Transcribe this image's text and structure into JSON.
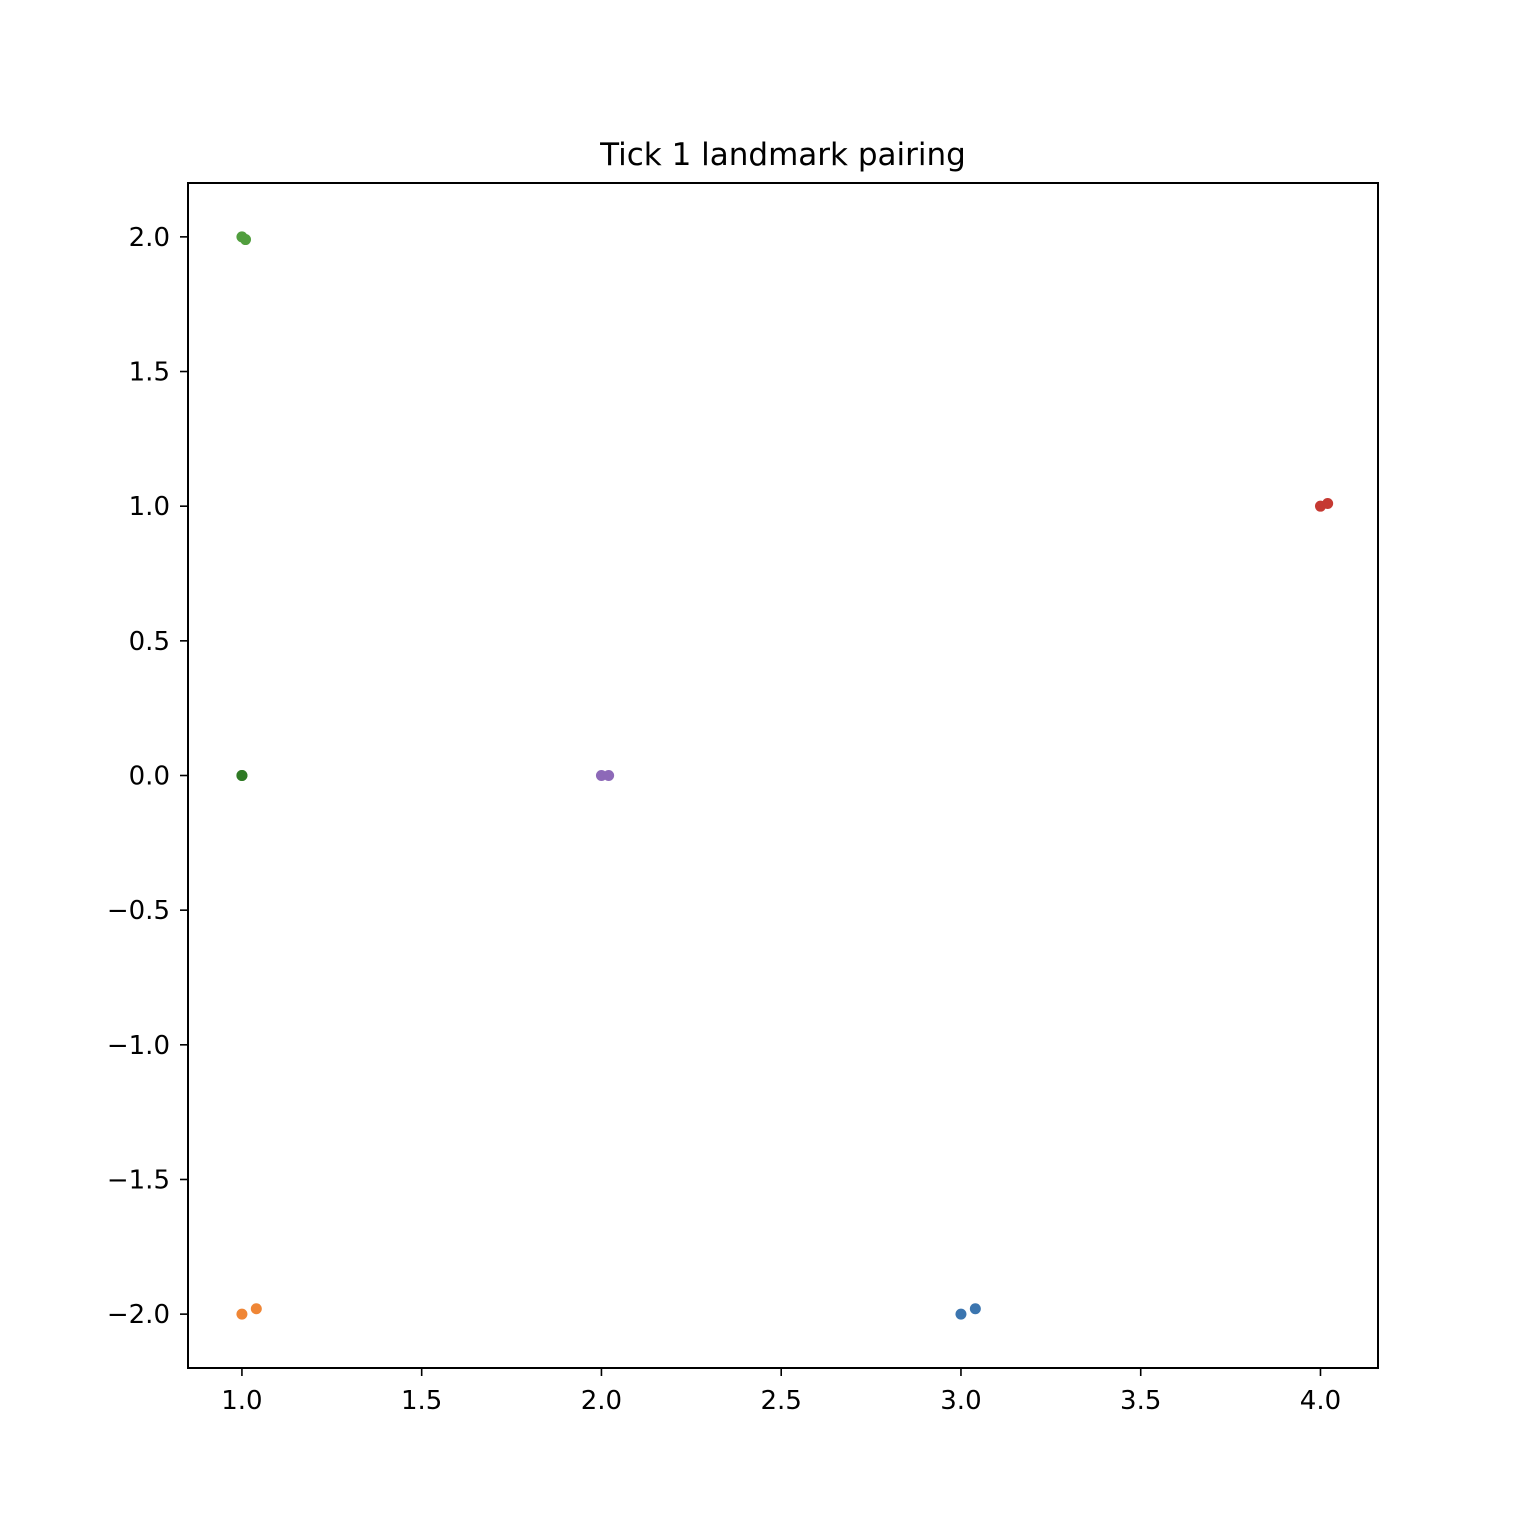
{
  "chart_data": {
    "type": "scatter",
    "title": "Tick 1 landmark pairing",
    "xlabel": "",
    "ylabel": "",
    "xlim": [
      0.85,
      4.16
    ],
    "ylim": [
      -2.2,
      2.2
    ],
    "grid": false,
    "xticks": [
      1.0,
      1.5,
      2.0,
      2.5,
      3.0,
      3.5,
      4.0
    ],
    "xtick_labels": [
      "1.0",
      "1.5",
      "2.0",
      "2.5",
      "3.0",
      "3.5",
      "4.0"
    ],
    "yticks": [
      2.0,
      1.5,
      1.0,
      0.5,
      0.0,
      -0.5,
      -1.0,
      -1.5,
      -2.0
    ],
    "ytick_labels": [
      "2.0",
      "1.5",
      "1.0",
      "0.5",
      "0.0",
      "−0.5",
      "−1.0",
      "−1.5",
      "−2.0"
    ],
    "series": [
      {
        "color": "#3b75af",
        "points": [
          [
            3.0,
            -2.0
          ],
          [
            3.04,
            -1.98
          ]
        ]
      },
      {
        "color": "#ef8636",
        "points": [
          [
            1.0,
            -2.0
          ],
          [
            1.04,
            -1.98
          ]
        ]
      },
      {
        "color": "#519e3e",
        "points": [
          [
            1.0,
            2.0
          ],
          [
            1.01,
            1.99
          ]
        ]
      },
      {
        "color": "#c53932",
        "points": [
          [
            4.0,
            1.0
          ],
          [
            4.02,
            1.01
          ]
        ]
      },
      {
        "color": "#8d69b8",
        "points": [
          [
            2.0,
            0.0
          ],
          [
            2.02,
            0.0
          ]
        ]
      },
      {
        "color": "#2f7a25",
        "points": [
          [
            1.0,
            0.0
          ],
          [
            1.0,
            0.0
          ]
        ]
      }
    ]
  }
}
